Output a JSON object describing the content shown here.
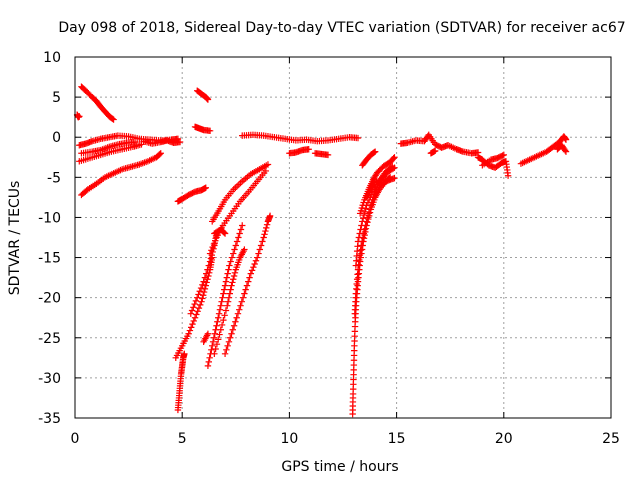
{
  "chart_data": {
    "type": "scatter",
    "title": "Day 098 of 2018, Sidereal Day-to-day VTEC variation (SDTVAR) for receiver ac67",
    "xlabel": "GPS time / hours",
    "ylabel": "SDTVAR / TECUs",
    "xlim": [
      0,
      25
    ],
    "ylim": [
      -35,
      10
    ],
    "xticks": [
      0,
      5,
      10,
      15,
      20,
      25
    ],
    "yticks": [
      10,
      5,
      0,
      -5,
      -10,
      -15,
      -20,
      -25,
      -30,
      -35
    ],
    "grid": true,
    "marker": "+",
    "color": "#ff0000",
    "series": [
      {
        "name": "s1",
        "points": [
          [
            0.1,
            2.8
          ],
          [
            0.15,
            2.5
          ],
          [
            0.2,
            2.6
          ]
        ]
      },
      {
        "name": "s2",
        "points": [
          [
            0.3,
            6.3
          ],
          [
            0.5,
            5.8
          ],
          [
            0.8,
            5.0
          ],
          [
            1.0,
            4.5
          ],
          [
            1.2,
            3.8
          ],
          [
            1.4,
            3.2
          ],
          [
            1.6,
            2.6
          ],
          [
            1.8,
            2.2
          ]
        ]
      },
      {
        "name": "s3",
        "points": [
          [
            0.2,
            -1.0
          ],
          [
            0.5,
            -0.8
          ],
          [
            0.8,
            -0.5
          ],
          [
            1.2,
            -0.2
          ],
          [
            1.6,
            0.0
          ],
          [
            2.0,
            0.2
          ],
          [
            2.5,
            0.1
          ],
          [
            3.0,
            -0.2
          ],
          [
            3.5,
            -0.3
          ],
          [
            4.0,
            -0.4
          ],
          [
            4.5,
            -0.3
          ],
          [
            4.8,
            -0.2
          ]
        ]
      },
      {
        "name": "s4",
        "points": [
          [
            0.3,
            -2.0
          ],
          [
            0.8,
            -1.8
          ],
          [
            1.2,
            -1.6
          ],
          [
            1.6,
            -1.2
          ],
          [
            2.0,
            -0.9
          ],
          [
            2.4,
            -0.7
          ],
          [
            2.8,
            -0.6
          ]
        ]
      },
      {
        "name": "s5",
        "points": [
          [
            0.2,
            -3.0
          ],
          [
            0.7,
            -2.6
          ],
          [
            1.2,
            -2.2
          ],
          [
            1.7,
            -1.8
          ],
          [
            2.2,
            -1.5
          ],
          [
            2.7,
            -1.2
          ],
          [
            3.1,
            -0.9
          ]
        ]
      },
      {
        "name": "s6",
        "points": [
          [
            0.3,
            -7.2
          ],
          [
            0.6,
            -6.5
          ],
          [
            1.0,
            -5.8
          ],
          [
            1.4,
            -5.0
          ],
          [
            1.8,
            -4.5
          ],
          [
            2.2,
            -4.0
          ],
          [
            2.6,
            -3.7
          ],
          [
            3.0,
            -3.4
          ],
          [
            3.4,
            -3.0
          ],
          [
            3.8,
            -2.5
          ],
          [
            4.0,
            -2.0
          ]
        ]
      },
      {
        "name": "s7",
        "points": [
          [
            3.2,
            -0.5
          ],
          [
            3.6,
            -0.8
          ],
          [
            4.0,
            -0.6
          ],
          [
            4.3,
            -0.4
          ],
          [
            4.6,
            -0.7
          ],
          [
            4.9,
            -0.6
          ]
        ]
      },
      {
        "name": "s8",
        "points": [
          [
            5.7,
            5.8
          ],
          [
            5.9,
            5.4
          ],
          [
            6.1,
            5.0
          ],
          [
            6.2,
            4.7
          ]
        ]
      },
      {
        "name": "s9",
        "points": [
          [
            5.6,
            1.3
          ],
          [
            5.8,
            1.1
          ],
          [
            6.0,
            0.9
          ],
          [
            6.3,
            0.8
          ]
        ]
      },
      {
        "name": "s10",
        "points": [
          [
            7.8,
            0.2
          ],
          [
            8.3,
            0.3
          ],
          [
            8.8,
            0.2
          ],
          [
            9.3,
            0.0
          ],
          [
            9.8,
            -0.2
          ],
          [
            10.3,
            -0.4
          ],
          [
            10.8,
            -0.3
          ],
          [
            11.3,
            -0.5
          ],
          [
            11.8,
            -0.4
          ],
          [
            12.3,
            -0.2
          ],
          [
            12.8,
            0.0
          ],
          [
            13.2,
            -0.1
          ]
        ]
      },
      {
        "name": "s11",
        "points": [
          [
            10.0,
            -2.0
          ],
          [
            10.3,
            -1.9
          ],
          [
            10.6,
            -1.6
          ],
          [
            10.9,
            -1.5
          ]
        ]
      },
      {
        "name": "s12",
        "points": [
          [
            11.2,
            -2.0
          ],
          [
            11.5,
            -2.1
          ],
          [
            11.8,
            -2.2
          ]
        ]
      },
      {
        "name": "s13",
        "points": [
          [
            4.8,
            -8.0
          ],
          [
            5.0,
            -7.7
          ],
          [
            5.3,
            -7.2
          ],
          [
            5.6,
            -6.8
          ],
          [
            5.9,
            -6.6
          ],
          [
            6.1,
            -6.3
          ]
        ]
      },
      {
        "name": "s14",
        "points": [
          [
            4.8,
            -34.0
          ],
          [
            4.85,
            -32.5
          ],
          [
            4.9,
            -31.0
          ],
          [
            4.95,
            -29.5
          ],
          [
            5.0,
            -28.5
          ],
          [
            5.05,
            -27.5
          ],
          [
            5.1,
            -27.0
          ]
        ]
      },
      {
        "name": "s15",
        "points": [
          [
            4.7,
            -27.5
          ],
          [
            5.0,
            -26.0
          ],
          [
            5.3,
            -24.5
          ],
          [
            5.6,
            -22.5
          ],
          [
            5.9,
            -20.5
          ],
          [
            6.1,
            -18.5
          ],
          [
            6.3,
            -16.5
          ],
          [
            6.4,
            -15.0
          ]
        ]
      },
      {
        "name": "s16",
        "points": [
          [
            5.4,
            -22.0
          ],
          [
            5.7,
            -20.0
          ],
          [
            6.0,
            -18.0
          ],
          [
            6.3,
            -15.5
          ],
          [
            6.5,
            -13.5
          ],
          [
            6.6,
            -12.0
          ]
        ]
      },
      {
        "name": "s17",
        "points": [
          [
            6.3,
            -14.5
          ],
          [
            6.6,
            -12.5
          ],
          [
            6.9,
            -11.0
          ],
          [
            7.3,
            -9.5
          ],
          [
            7.7,
            -8.0
          ],
          [
            8.1,
            -6.8
          ],
          [
            8.5,
            -5.5
          ],
          [
            8.9,
            -4.2
          ]
        ]
      },
      {
        "name": "s18",
        "points": [
          [
            6.4,
            -10.5
          ],
          [
            6.7,
            -9.2
          ],
          [
            7.0,
            -7.8
          ],
          [
            7.4,
            -6.5
          ],
          [
            7.8,
            -5.5
          ],
          [
            8.2,
            -4.6
          ],
          [
            8.6,
            -4.0
          ],
          [
            9.0,
            -3.4
          ]
        ]
      },
      {
        "name": "s19",
        "points": [
          [
            6.5,
            -27.0
          ],
          [
            6.8,
            -24.0
          ],
          [
            7.1,
            -21.0
          ],
          [
            7.3,
            -18.5
          ],
          [
            7.5,
            -16.5
          ],
          [
            7.7,
            -15.0
          ],
          [
            7.9,
            -14.0
          ]
        ]
      },
      {
        "name": "s20",
        "points": [
          [
            6.2,
            -28.5
          ],
          [
            6.4,
            -26.0
          ],
          [
            6.6,
            -23.5
          ],
          [
            6.8,
            -21.0
          ],
          [
            7.0,
            -18.5
          ],
          [
            7.2,
            -16.0
          ],
          [
            7.5,
            -13.5
          ],
          [
            7.8,
            -11.0
          ]
        ]
      },
      {
        "name": "s21",
        "points": [
          [
            6.5,
            -12.0
          ],
          [
            6.8,
            -11.5
          ],
          [
            7.0,
            -12.0
          ]
        ]
      },
      {
        "name": "s22",
        "points": [
          [
            6.0,
            -25.5
          ],
          [
            6.2,
            -24.5
          ]
        ]
      },
      {
        "name": "s23",
        "points": [
          [
            7.0,
            -27.0
          ],
          [
            7.3,
            -24.5
          ],
          [
            7.6,
            -22.0
          ],
          [
            7.9,
            -19.5
          ],
          [
            8.2,
            -17.0
          ],
          [
            8.5,
            -15.0
          ],
          [
            8.8,
            -12.5
          ],
          [
            9.0,
            -10.5
          ],
          [
            9.1,
            -9.8
          ]
        ]
      },
      {
        "name": "s24",
        "points": [
          [
            12.95,
            -34.5
          ],
          [
            12.97,
            -32.0
          ],
          [
            13.0,
            -29.0
          ],
          [
            13.03,
            -26.0
          ],
          [
            13.07,
            -23.0
          ],
          [
            13.12,
            -20.5
          ],
          [
            13.2,
            -18.0
          ],
          [
            13.3,
            -15.5
          ],
          [
            13.45,
            -13.0
          ],
          [
            13.6,
            -11.0
          ],
          [
            13.8,
            -9.0
          ],
          [
            14.0,
            -7.5
          ],
          [
            14.2,
            -6.5
          ],
          [
            14.5,
            -5.5
          ],
          [
            14.7,
            -5.0
          ]
        ]
      },
      {
        "name": "s25",
        "points": [
          [
            13.05,
            -22.0
          ],
          [
            13.1,
            -19.5
          ],
          [
            13.2,
            -16.5
          ],
          [
            13.35,
            -13.5
          ],
          [
            13.55,
            -11.0
          ],
          [
            13.8,
            -8.5
          ],
          [
            14.0,
            -6.8
          ],
          [
            14.3,
            -5.3
          ],
          [
            14.6,
            -4.3
          ],
          [
            14.9,
            -3.8
          ]
        ]
      },
      {
        "name": "s26",
        "points": [
          [
            13.1,
            -16.0
          ],
          [
            13.2,
            -13.0
          ],
          [
            13.4,
            -10.5
          ],
          [
            13.6,
            -8.5
          ],
          [
            13.9,
            -6.8
          ],
          [
            14.2,
            -5.4
          ],
          [
            14.5,
            -4.3
          ],
          [
            14.8,
            -3.6
          ]
        ]
      },
      {
        "name": "s27",
        "points": [
          [
            13.3,
            -9.5
          ],
          [
            13.5,
            -7.8
          ],
          [
            13.7,
            -6.5
          ],
          [
            13.9,
            -5.3
          ],
          [
            14.1,
            -4.4
          ],
          [
            14.4,
            -3.6
          ],
          [
            14.7,
            -3.1
          ],
          [
            14.9,
            -2.5
          ]
        ]
      },
      {
        "name": "s28",
        "points": [
          [
            13.6,
            -7.5
          ],
          [
            13.8,
            -6.5
          ],
          [
            14.0,
            -5.5
          ],
          [
            14.3,
            -5.8
          ],
          [
            14.6,
            -5.4
          ],
          [
            14.9,
            -5.1
          ]
        ]
      },
      {
        "name": "s29",
        "points": [
          [
            13.4,
            -3.5
          ],
          [
            13.6,
            -2.8
          ],
          [
            13.8,
            -2.2
          ],
          [
            14.0,
            -1.8
          ]
        ]
      },
      {
        "name": "s30",
        "points": [
          [
            15.2,
            -0.8
          ],
          [
            15.5,
            -0.7
          ],
          [
            15.9,
            -0.4
          ],
          [
            16.3,
            -0.5
          ],
          [
            16.5,
            0.3
          ],
          [
            16.8,
            -0.9
          ],
          [
            17.1,
            -1.3
          ],
          [
            17.4,
            -1.0
          ],
          [
            17.8,
            -1.5
          ],
          [
            18.1,
            -1.8
          ],
          [
            18.5,
            -2.0
          ],
          [
            18.8,
            -1.9
          ]
        ]
      },
      {
        "name": "s31",
        "points": [
          [
            16.6,
            -2.0
          ],
          [
            16.8,
            -1.7
          ]
        ]
      },
      {
        "name": "s32",
        "points": [
          [
            18.8,
            -2.5
          ],
          [
            19.0,
            -2.8
          ],
          [
            19.3,
            -3.5
          ],
          [
            19.6,
            -3.8
          ],
          [
            19.9,
            -3.2
          ],
          [
            20.1,
            -3.0
          ],
          [
            20.2,
            -4.8
          ]
        ]
      },
      {
        "name": "s33",
        "points": [
          [
            19.0,
            -3.5
          ],
          [
            19.4,
            -2.8
          ],
          [
            19.7,
            -2.6
          ],
          [
            20.0,
            -2.2
          ]
        ]
      },
      {
        "name": "s34",
        "points": [
          [
            20.8,
            -3.3
          ],
          [
            21.2,
            -2.8
          ],
          [
            21.6,
            -2.3
          ],
          [
            22.0,
            -1.8
          ],
          [
            22.3,
            -1.2
          ],
          [
            22.6,
            -0.6
          ],
          [
            22.8,
            0.1
          ],
          [
            22.9,
            -0.3
          ]
        ]
      },
      {
        "name": "s35",
        "points": [
          [
            22.5,
            -1.5
          ],
          [
            22.7,
            -1.0
          ],
          [
            22.9,
            -1.8
          ]
        ]
      }
    ]
  }
}
